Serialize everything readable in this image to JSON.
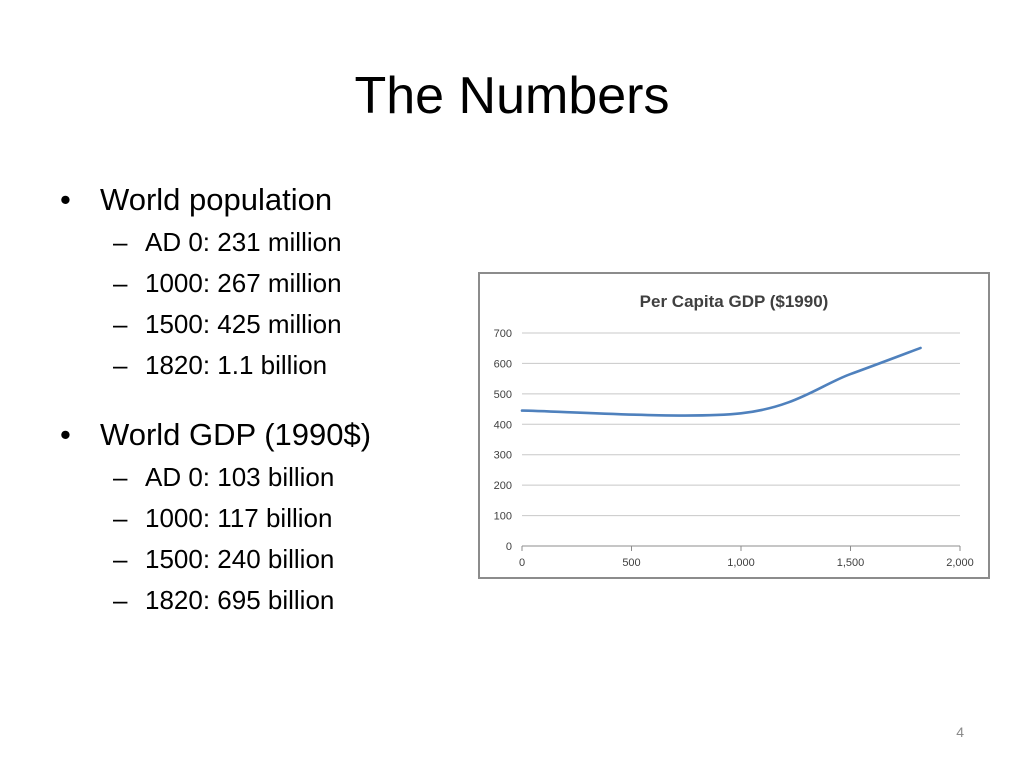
{
  "slide": {
    "title": "The Numbers",
    "page_number": "4",
    "bullets": [
      {
        "mark": "•",
        "text": "World population",
        "sub_mark": "–",
        "items": [
          "AD 0: 231 million",
          "1000: 267 million",
          "1500: 425 million",
          "1820: 1.1 billion"
        ]
      },
      {
        "mark": "•",
        "text": "World GDP (1990$)",
        "sub_mark": "–",
        "items": [
          "AD 0: 103 billion",
          "1000: 117 billion",
          "1500: 240 billion",
          "1820: 695 billion"
        ]
      }
    ]
  },
  "chart_data": {
    "type": "line",
    "title": "Per Capita GDP ($1990)",
    "xlabel": "",
    "ylabel": "",
    "xlim": [
      0,
      2000
    ],
    "ylim": [
      0,
      700
    ],
    "x_ticks": [
      0,
      500,
      1000,
      1500,
      2000
    ],
    "x_tick_labels": [
      "0",
      "500",
      "1,000",
      "1,500",
      "2,000"
    ],
    "y_ticks": [
      0,
      100,
      200,
      300,
      400,
      500,
      600,
      700
    ],
    "y_tick_labels": [
      "0",
      "100",
      "200",
      "300",
      "400",
      "500",
      "600",
      "700"
    ],
    "grid": true,
    "legend": "none",
    "series": [
      {
        "color": "#4f81bd",
        "x": [
          0,
          1000,
          1500,
          1820
        ],
        "y": [
          445,
          436,
          565,
          651
        ]
      }
    ],
    "colors": {
      "line": "#4f81bd",
      "grid": "#c8c8c8",
      "axis": "#8c8c8c",
      "text": "#404040"
    }
  }
}
